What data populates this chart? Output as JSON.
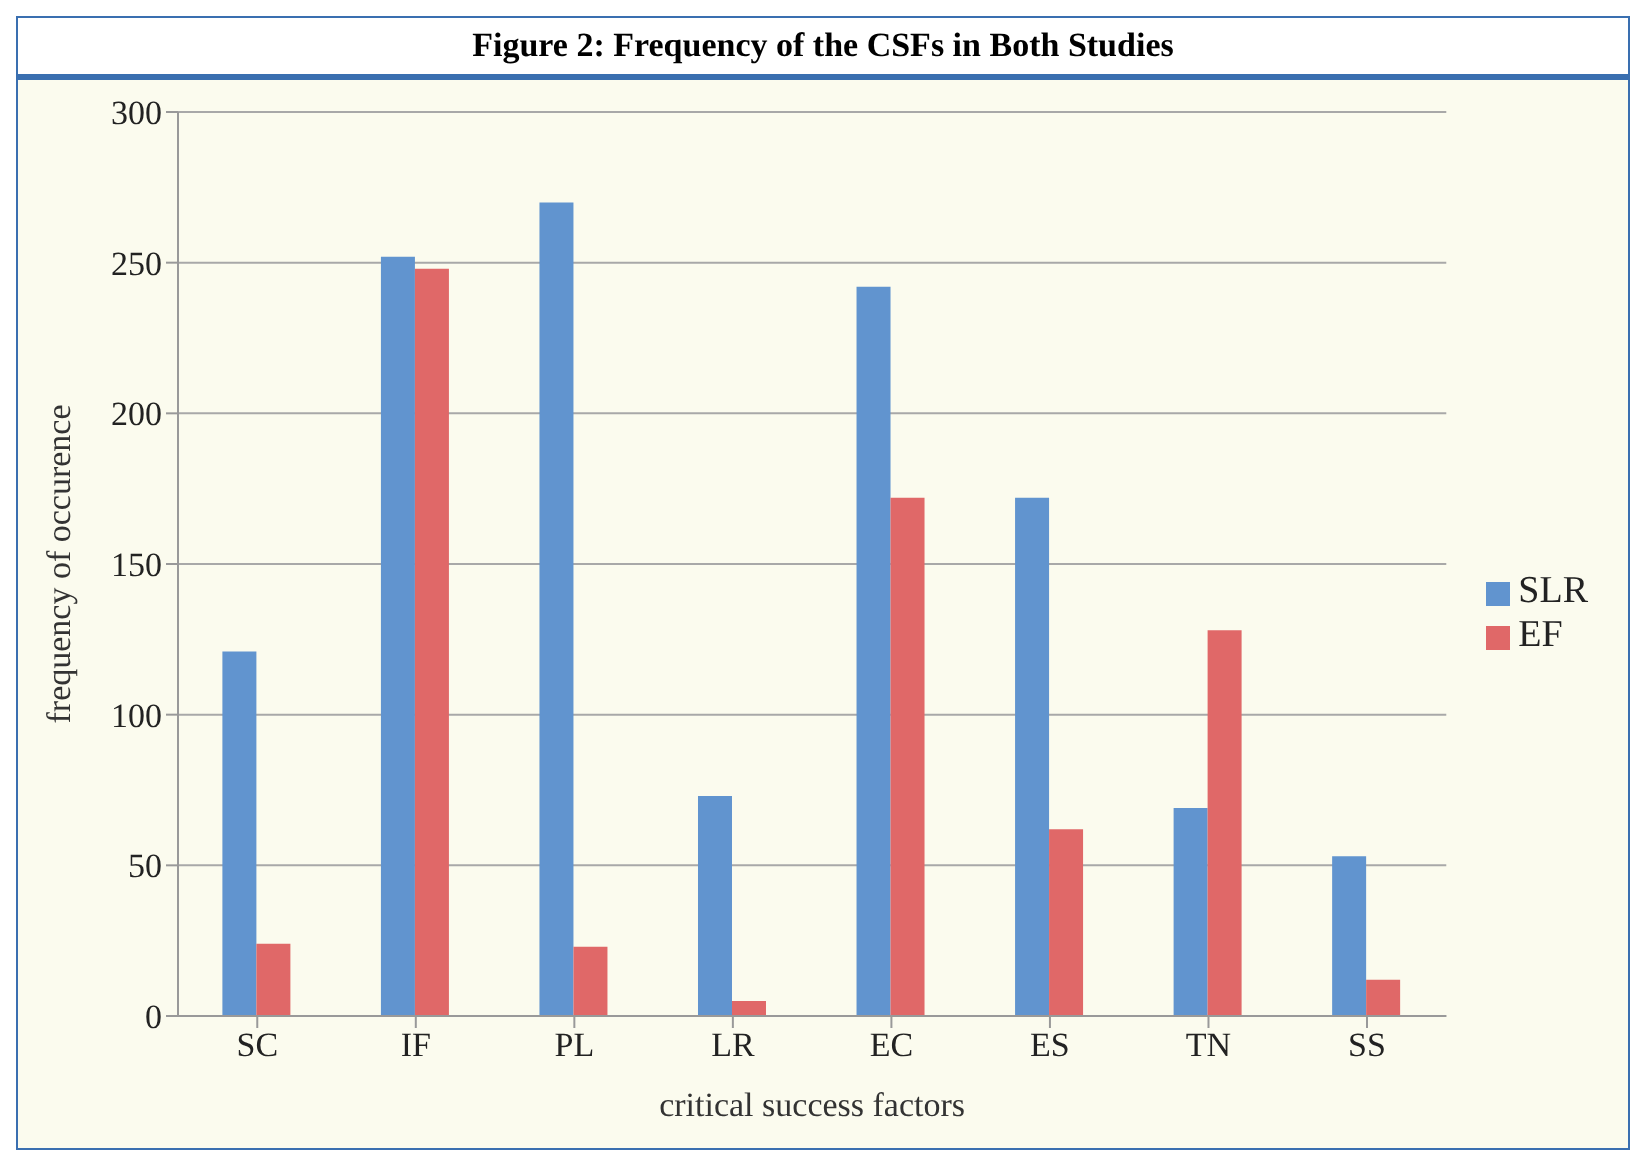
{
  "chart_data": {
    "type": "bar",
    "title": "Figure 2: Frequency of the CSFs in Both Studies",
    "xlabel": "critical success factors",
    "ylabel": "frequency of occurence",
    "categories": [
      "SC",
      "IF",
      "PL",
      "LR",
      "EC",
      "ES",
      "TN",
      "SS"
    ],
    "series": [
      {
        "name": "SLR",
        "color": "#6194cf",
        "values": [
          121,
          252,
          270,
          73,
          242,
          172,
          69,
          53
        ]
      },
      {
        "name": "EF",
        "color": "#e06868",
        "values": [
          24,
          248,
          23,
          5,
          172,
          62,
          128,
          12
        ]
      }
    ],
    "ylim": [
      0,
      300
    ],
    "yticks": [
      0,
      50,
      100,
      150,
      200,
      250,
      300
    ],
    "grid": "y",
    "legend": "right"
  }
}
